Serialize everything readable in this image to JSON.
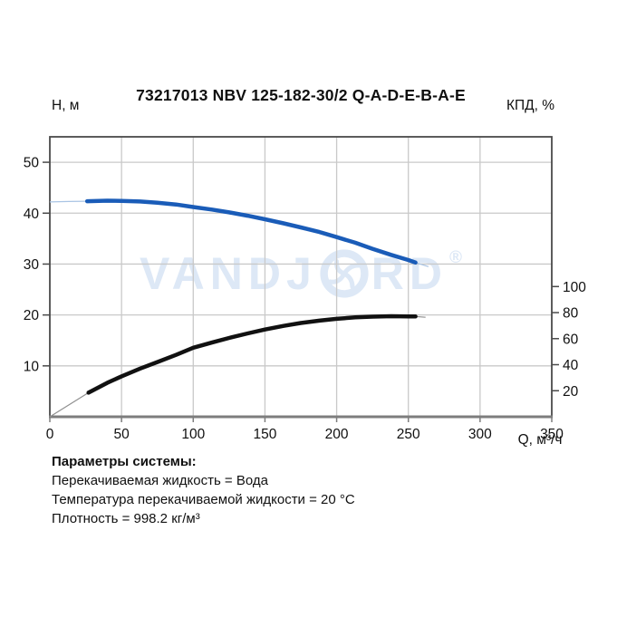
{
  "header": {
    "title": "73217013 NBV 125-182-30/2 Q-A-D-E-B-A-E",
    "left_axis_label": "Н, м",
    "right_axis_label": "КПД, %"
  },
  "watermark": {
    "part1": "VANDJ",
    "part2": "RD",
    "registered": "®",
    "logo": "impeller-swirl-icon",
    "color": "#dde8f6"
  },
  "params": {
    "heading": "Параметры системы:",
    "lines": [
      "Перекачиваемая жидкость = Вода",
      "Температура перекачиваемой жидкости = 20 °C",
      "Плотность = 998.2 кг/м³"
    ]
  },
  "colors": {
    "curve_head": "#1a5cb8",
    "curve_head_lead": "#a9c4e4",
    "curve_efficiency": "#111111",
    "curve_efficiency_lead": "#8f8f8f",
    "grid": "#c9c9c9",
    "plot_border": "#4a4a4a",
    "bottom_axis": "#7d7d7d",
    "tick_text": "#101010"
  },
  "chart_data": {
    "type": "line",
    "title": "73217013 NBV 125-182-30/2 Q-A-D-E-B-A-E",
    "xlabel": "Q, м³/ч",
    "x_range": [
      0,
      350
    ],
    "x_ticks": [
      0,
      50,
      100,
      150,
      200,
      250,
      300,
      350
    ],
    "grid": true,
    "legend": "none",
    "left_axis": {
      "label": "Н, м",
      "ticks": [
        10,
        20,
        30,
        40,
        50
      ],
      "range": [
        0,
        55
      ]
    },
    "right_axis": {
      "label": "КПД, %",
      "ticks": [
        20,
        40,
        60,
        80,
        100
      ],
      "range": [
        0,
        215
      ]
    },
    "series": [
      {
        "name": "head-curve-H(Q)",
        "axis": "left",
        "color": "#1a5cb8",
        "lead_color": "#a9c4e4",
        "width": 4.5,
        "lead_in": [
          [
            0,
            42.2
          ],
          [
            13,
            42.3
          ],
          [
            26,
            42.35
          ]
        ],
        "points": [
          [
            26,
            42.35
          ],
          [
            40,
            42.45
          ],
          [
            50,
            42.4
          ],
          [
            63,
            42.3
          ],
          [
            75,
            42.05
          ],
          [
            88,
            41.7
          ],
          [
            100,
            41.2
          ],
          [
            113,
            40.7
          ],
          [
            125,
            40.15
          ],
          [
            138,
            39.5
          ],
          [
            150,
            38.8
          ],
          [
            163,
            38.0
          ],
          [
            175,
            37.2
          ],
          [
            188,
            36.3
          ],
          [
            200,
            35.3
          ],
          [
            213,
            34.2
          ],
          [
            225,
            33.0
          ],
          [
            238,
            31.8
          ],
          [
            250,
            30.8
          ],
          [
            255,
            30.3
          ]
        ],
        "lead_out": [
          [
            255,
            30.3
          ],
          [
            264,
            29.5
          ]
        ]
      },
      {
        "name": "efficiency-curve-eta(Q)",
        "axis": "right",
        "color": "#111111",
        "lead_color": "#8f8f8f",
        "width": 4.5,
        "lead_in": [
          [
            0,
            0
          ],
          [
            27,
            18.5
          ]
        ],
        "points": [
          [
            27,
            18.5
          ],
          [
            40,
            26
          ],
          [
            50,
            31
          ],
          [
            63,
            37
          ],
          [
            75,
            42
          ],
          [
            88,
            47.5
          ],
          [
            100,
            53
          ],
          [
            113,
            57
          ],
          [
            125,
            60.5
          ],
          [
            138,
            64
          ],
          [
            150,
            67
          ],
          [
            163,
            69.8
          ],
          [
            175,
            72
          ],
          [
            188,
            73.8
          ],
          [
            200,
            75.2
          ],
          [
            213,
            76.3
          ],
          [
            225,
            76.9
          ],
          [
            238,
            77.2
          ],
          [
            250,
            77.1
          ],
          [
            255,
            77.0
          ]
        ],
        "lead_out": [
          [
            255,
            77.0
          ],
          [
            262,
            76.4
          ]
        ]
      }
    ]
  }
}
